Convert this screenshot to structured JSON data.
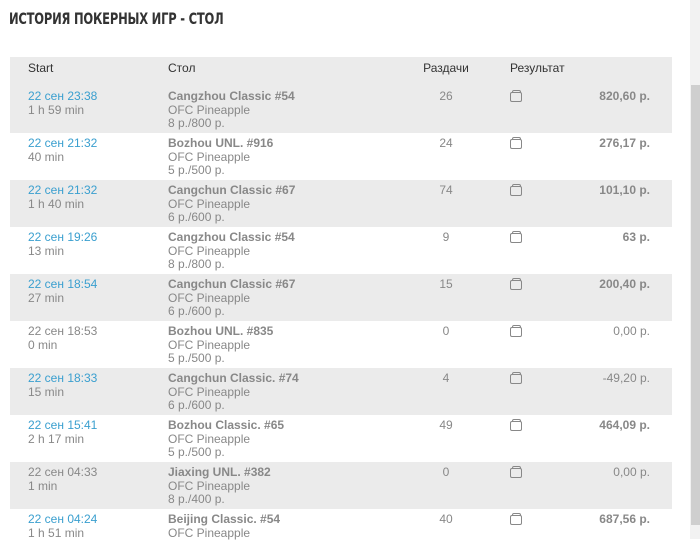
{
  "title": "ИСТОРИЯ ПОКЕРНЫХ ИГР - СТОЛ",
  "columns": {
    "start": "Start",
    "table": "Стол",
    "hands": "Раздачи",
    "result": "Результат"
  },
  "rows": [
    {
      "date": "22 сен 23:38",
      "duration": "1 h 59 min",
      "table": "Cangzhou Classic #54",
      "game": "OFC Pineapple",
      "stakes": "8 р./800 р.",
      "hands": "26",
      "amount": "820,60 р.",
      "linked": true,
      "bold": true
    },
    {
      "date": "22 сен 21:32",
      "duration": "40 min",
      "table": "Bozhou UNL. #916",
      "game": "OFC Pineapple",
      "stakes": "5 р./500 р.",
      "hands": "24",
      "amount": "276,17 р.",
      "linked": true,
      "bold": true
    },
    {
      "date": "22 сен 21:32",
      "duration": "1 h 40 min",
      "table": "Cangchun Classic #67",
      "game": "OFC Pineapple",
      "stakes": "6 р./600 р.",
      "hands": "74",
      "amount": "101,10 р.",
      "linked": true,
      "bold": true
    },
    {
      "date": "22 сен 19:26",
      "duration": "13 min",
      "table": "Cangzhou Classic #54",
      "game": "OFC Pineapple",
      "stakes": "8 р./800 р.",
      "hands": "9",
      "amount": "63 р.",
      "linked": true,
      "bold": true
    },
    {
      "date": "22 сен 18:54",
      "duration": "27 min",
      "table": "Cangchun Classic #67",
      "game": "OFC Pineapple",
      "stakes": "6 р./600 р.",
      "hands": "15",
      "amount": "200,40 р.",
      "linked": true,
      "bold": true
    },
    {
      "date": "22 сен 18:53",
      "duration": "0 min",
      "table": "Bozhou UNL. #835",
      "game": "OFC Pineapple",
      "stakes": "5 р./500 р.",
      "hands": "0",
      "amount": "0,00 р.",
      "linked": false,
      "bold": false
    },
    {
      "date": "22 сен 18:33",
      "duration": "15 min",
      "table": "Cangchun Classic. #74",
      "game": "OFC Pineapple",
      "stakes": "6 р./600 р.",
      "hands": "4",
      "amount": "-49,20 р.",
      "linked": true,
      "bold": false
    },
    {
      "date": "22 сен 15:41",
      "duration": "2 h 17 min",
      "table": "Bozhou Classic. #65",
      "game": "OFC Pineapple",
      "stakes": "5 р./500 р.",
      "hands": "49",
      "amount": "464,09 р.",
      "linked": true,
      "bold": true
    },
    {
      "date": "22 сен 04:33",
      "duration": "1 min",
      "table": "Jiaxing UNL. #382",
      "game": "OFC Pineapple",
      "stakes": "8 р./400 р.",
      "hands": "0",
      "amount": "0,00 р.",
      "linked": false,
      "bold": false
    },
    {
      "date": "22 сен 04:24",
      "duration": "1 h 51 min",
      "table": "Beijing Classic. #54",
      "game": "OFC Pineapple",
      "stakes": "",
      "hands": "40",
      "amount": "687,56 р.",
      "linked": true,
      "bold": true
    }
  ],
  "icons": {
    "result": "wallet-icon"
  },
  "colors": {
    "link": "#3a9fcf",
    "text": "#888888",
    "stripe": "#ebebeb"
  }
}
